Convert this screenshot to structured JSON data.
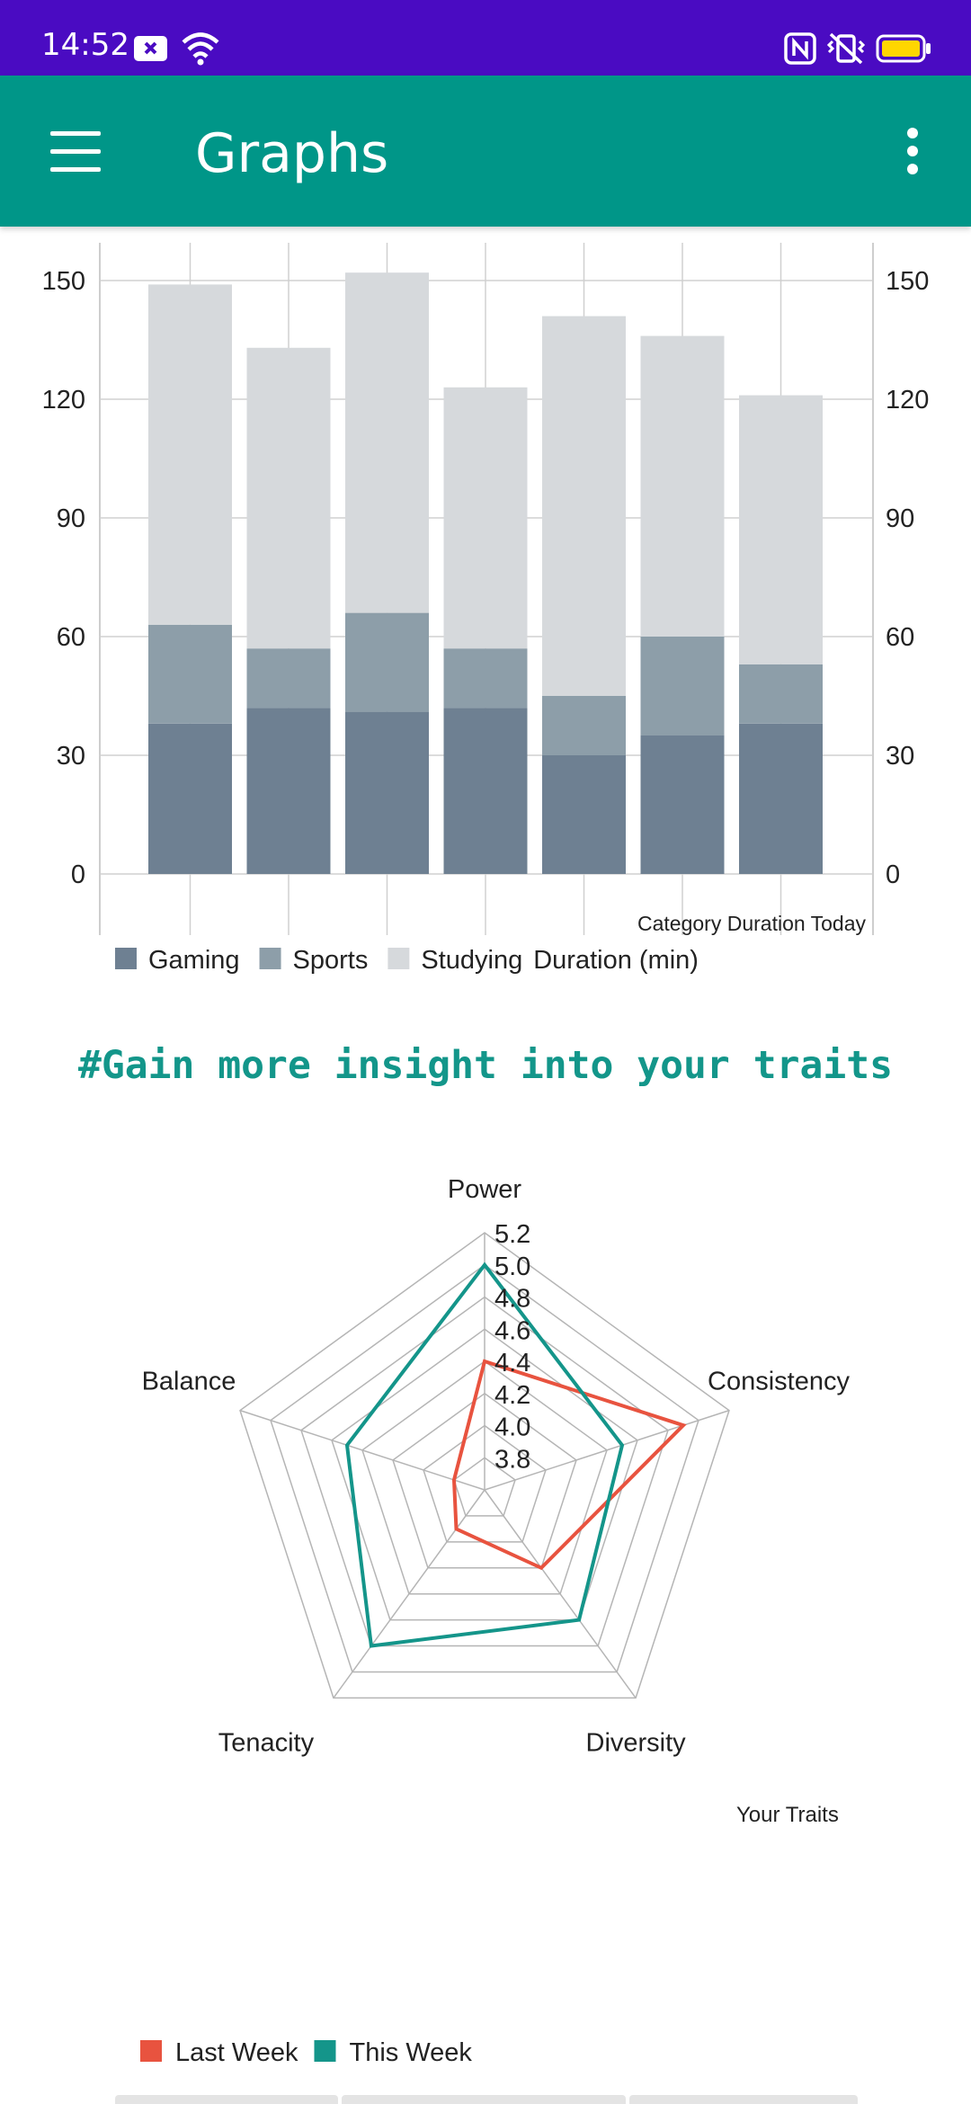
{
  "status_bar": {
    "time": "14:52",
    "icons": [
      "notification-x-icon",
      "wifi-icon",
      "nfc-icon",
      "vibrate-icon",
      "battery-icon"
    ],
    "battery_color": "#ffd600"
  },
  "app_bar": {
    "title": "Graphs",
    "menu_icon": "hamburger-menu-icon",
    "overflow_icon": "more-vert-icon",
    "color": "#009688"
  },
  "chart_data": [
    {
      "type": "bar",
      "stacked": true,
      "categories": [
        "",
        "",
        "",
        "",
        "",
        "",
        ""
      ],
      "series": [
        {
          "name": "Gaming",
          "color": "#6e8092",
          "values": [
            38,
            42,
            41,
            42,
            30,
            35,
            38
          ]
        },
        {
          "name": "Sports",
          "color": "#8d9ea9",
          "values": [
            25,
            15,
            25,
            15,
            15,
            25,
            15
          ]
        },
        {
          "name": "Studying",
          "color": "#d6d9dc",
          "values": [
            86,
            76,
            86,
            66,
            96,
            76,
            68
          ]
        }
      ],
      "ylim": [
        0,
        150
      ],
      "yticks": [
        "0",
        "30",
        "60",
        "90",
        "120",
        "150"
      ],
      "description": "Category Duration Today",
      "legend_suffix": "Duration (min)",
      "legend_position": "bottom-left",
      "grid": true
    },
    {
      "type": "radar",
      "axes": [
        "Power",
        "Consistency",
        "Diversity",
        "Tenacity",
        "Balance"
      ],
      "range": [
        3.6,
        5.2
      ],
      "ticks": [
        "3.8",
        "4.0",
        "4.2",
        "4.4",
        "4.6",
        "4.8",
        "5.0",
        "5.2"
      ],
      "series": [
        {
          "name": "Last Week",
          "color": "#e8533f",
          "values": [
            4.4,
            4.9,
            4.2,
            3.9,
            3.8
          ]
        },
        {
          "name": "This Week",
          "color": "#14958a",
          "values": [
            5.0,
            4.5,
            4.6,
            4.8,
            4.5
          ]
        }
      ],
      "description": "Your Traits",
      "legend_position": "bottom-left",
      "grid": true
    }
  ],
  "insight_text": "#Gain more insight into your traits"
}
